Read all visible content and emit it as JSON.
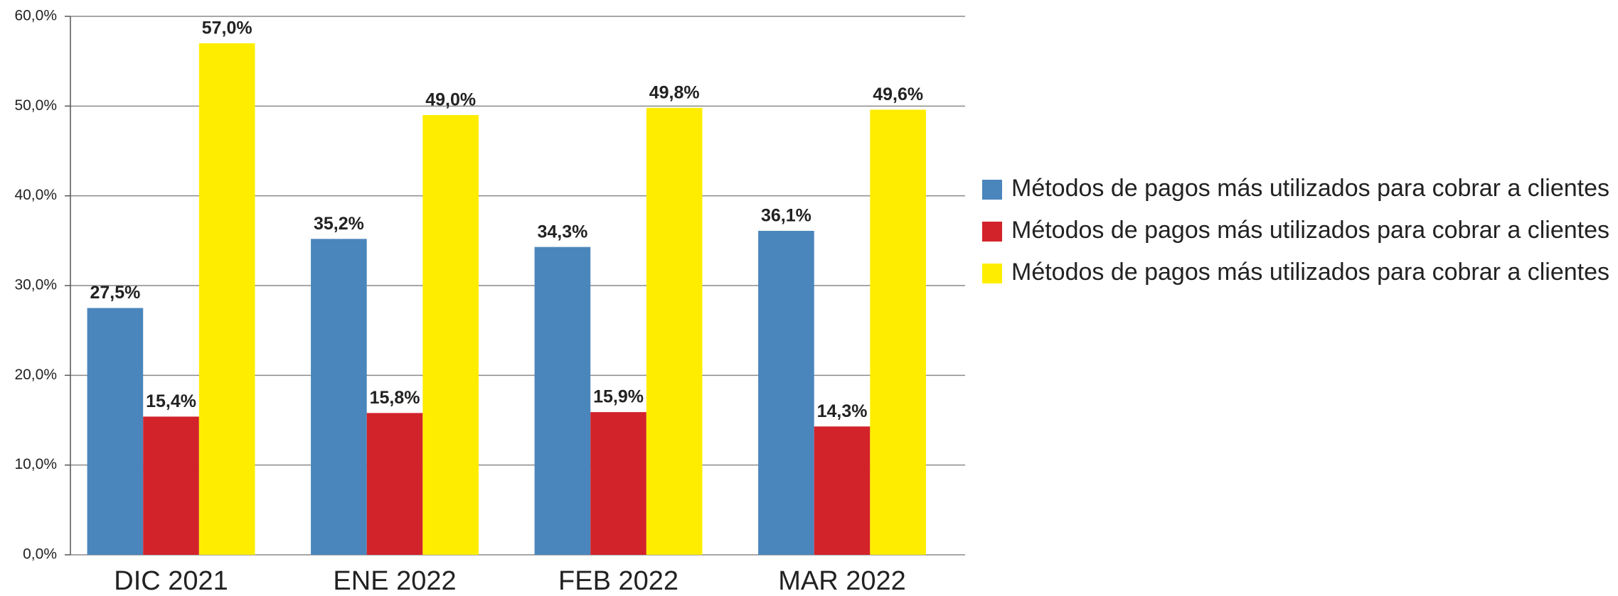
{
  "chart_data": {
    "type": "bar",
    "categories": [
      "DIC 2021",
      "ENE 2022",
      "FEB 2022",
      "MAR 2022"
    ],
    "series": [
      {
        "name": "Métodos de pagos más utilizados para cobrar a clientes",
        "color": "#4a86bc",
        "values": [
          27.5,
          35.2,
          34.3,
          36.1
        ],
        "value_labels": [
          "27,5%",
          "35,2%",
          "34,3%",
          "36,1%"
        ]
      },
      {
        "name": "Métodos de pagos más utilizados para cobrar a clientes",
        "color": "#d2232a",
        "values": [
          15.4,
          15.8,
          15.9,
          14.3
        ],
        "value_labels": [
          "15,4%",
          "15,8%",
          "15,9%",
          "14,3%"
        ]
      },
      {
        "name": "Métodos de pagos más utilizados para cobrar a clientes",
        "color": "#ffed00",
        "values": [
          57.0,
          49.0,
          49.8,
          49.6
        ],
        "value_labels": [
          "57,0%",
          "49,0%",
          "49,8%",
          "49,6%"
        ]
      }
    ],
    "ylim": [
      0,
      60
    ],
    "yticks": [
      {
        "value": 0,
        "label": "0,0%"
      },
      {
        "value": 10,
        "label": "10,0%"
      },
      {
        "value": 20,
        "label": "20,0%"
      },
      {
        "value": 30,
        "label": "30,0%"
      },
      {
        "value": 40,
        "label": "40,0%"
      },
      {
        "value": 50,
        "label": "50,0%"
      },
      {
        "value": 60,
        "label": "60,0%"
      }
    ],
    "grid": true,
    "legend": "right"
  }
}
